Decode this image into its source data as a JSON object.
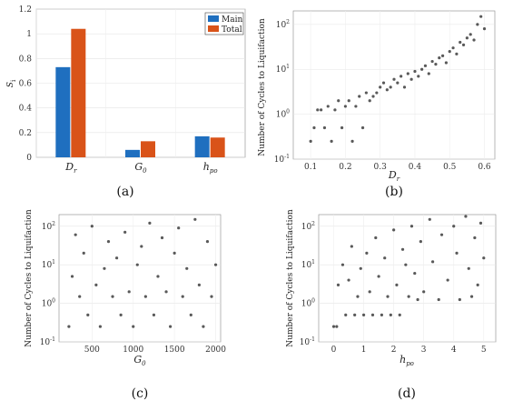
{
  "panel_labels": [
    "(a)",
    "(b)",
    "(c)",
    "(d)"
  ],
  "colors": {
    "main": "#1f6fbf",
    "total": "#d95319",
    "points": "#222222"
  },
  "chart_data": [
    {
      "type": "bar",
      "ylabel": "Si",
      "categories": [
        "Dr",
        "G0",
        "hpo"
      ],
      "ylim": [
        0,
        1.2
      ],
      "yticks": [
        "0",
        "0.2",
        "0.4",
        "0.6",
        "0.8",
        "1",
        "1.2"
      ],
      "legend": "top-right",
      "series": [
        {
          "name": "Main",
          "values": [
            0.73,
            0.06,
            0.17
          ]
        },
        {
          "name": "Total",
          "values": [
            1.04,
            0.13,
            0.16
          ]
        }
      ],
      "grid": true
    },
    {
      "type": "scatter",
      "xlabel": "Dr",
      "ylabel": "Number of Cycles to Liquifaction",
      "xlim": [
        0.05,
        0.63
      ],
      "xticks": [
        "0.1",
        "0.2",
        "0.3",
        "0.4",
        "0.5",
        "0.6"
      ],
      "yscale": "log",
      "ylim": [
        0.1,
        200
      ],
      "yticks": [
        0.1,
        1,
        10,
        100
      ],
      "trend": "increasing",
      "points": [
        [
          0.1,
          0.25
        ],
        [
          0.11,
          0.5
        ],
        [
          0.12,
          1.25
        ],
        [
          0.13,
          1.25
        ],
        [
          0.14,
          0.5
        ],
        [
          0.15,
          1.5
        ],
        [
          0.16,
          0.25
        ],
        [
          0.17,
          1.25
        ],
        [
          0.18,
          2
        ],
        [
          0.19,
          0.5
        ],
        [
          0.2,
          1.5
        ],
        [
          0.21,
          2
        ],
        [
          0.22,
          0.25
        ],
        [
          0.23,
          1.5
        ],
        [
          0.24,
          2.5
        ],
        [
          0.25,
          0.5
        ],
        [
          0.26,
          3
        ],
        [
          0.27,
          2
        ],
        [
          0.28,
          2.5
        ],
        [
          0.29,
          3
        ],
        [
          0.3,
          4
        ],
        [
          0.31,
          5
        ],
        [
          0.32,
          3.5
        ],
        [
          0.33,
          4
        ],
        [
          0.34,
          6
        ],
        [
          0.35,
          5
        ],
        [
          0.36,
          7
        ],
        [
          0.37,
          4
        ],
        [
          0.38,
          8
        ],
        [
          0.39,
          6
        ],
        [
          0.4,
          9
        ],
        [
          0.41,
          7
        ],
        [
          0.42,
          10
        ],
        [
          0.43,
          12
        ],
        [
          0.44,
          8
        ],
        [
          0.45,
          15
        ],
        [
          0.46,
          13
        ],
        [
          0.47,
          18
        ],
        [
          0.48,
          20
        ],
        [
          0.49,
          14
        ],
        [
          0.5,
          25
        ],
        [
          0.51,
          30
        ],
        [
          0.52,
          22
        ],
        [
          0.53,
          40
        ],
        [
          0.54,
          35
        ],
        [
          0.55,
          50
        ],
        [
          0.56,
          60
        ],
        [
          0.57,
          45
        ],
        [
          0.58,
          100
        ],
        [
          0.59,
          150
        ],
        [
          0.6,
          80
        ]
      ]
    },
    {
      "type": "scatter",
      "xlabel": "G0",
      "ylabel": "Number of Cycles to Liquifaction",
      "xlim": [
        100,
        2060
      ],
      "xticks": [
        "500",
        "1000",
        "1500",
        "2000"
      ],
      "yscale": "log",
      "ylim": [
        0.1,
        200
      ],
      "yticks": [
        0.1,
        1,
        10,
        100
      ],
      "trend": "none",
      "points": [
        [
          220,
          0.25
        ],
        [
          260,
          5
        ],
        [
          300,
          60
        ],
        [
          350,
          1.5
        ],
        [
          400,
          20
        ],
        [
          450,
          0.5
        ],
        [
          500,
          100
        ],
        [
          550,
          3
        ],
        [
          600,
          0.25
        ],
        [
          650,
          8
        ],
        [
          700,
          40
        ],
        [
          750,
          1.5
        ],
        [
          800,
          15
        ],
        [
          850,
          0.5
        ],
        [
          900,
          70
        ],
        [
          950,
          2
        ],
        [
          1000,
          0.25
        ],
        [
          1050,
          10
        ],
        [
          1100,
          30
        ],
        [
          1150,
          1.5
        ],
        [
          1200,
          120
        ],
        [
          1250,
          0.5
        ],
        [
          1300,
          5
        ],
        [
          1350,
          50
        ],
        [
          1400,
          2
        ],
        [
          1450,
          0.25
        ],
        [
          1500,
          20
        ],
        [
          1550,
          90
        ],
        [
          1600,
          1.5
        ],
        [
          1650,
          8
        ],
        [
          1700,
          0.5
        ],
        [
          1750,
          150
        ],
        [
          1800,
          3
        ],
        [
          1850,
          0.25
        ],
        [
          1900,
          40
        ],
        [
          1950,
          1.5
        ],
        [
          2000,
          10
        ]
      ]
    },
    {
      "type": "scatter",
      "xlabel": "hpo",
      "ylabel": "Number of Cycles to Liquifaction",
      "xlim": [
        -0.5,
        5.4
      ],
      "xticks": [
        "0",
        "1",
        "2",
        "3",
        "4",
        "5"
      ],
      "yscale": "log",
      "ylim": [
        0.1,
        200
      ],
      "yticks": [
        0.1,
        1,
        10,
        100
      ],
      "trend": "weak-increasing",
      "points": [
        [
          0.0,
          0.25
        ],
        [
          0.1,
          0.25
        ],
        [
          0.15,
          3
        ],
        [
          0.3,
          10
        ],
        [
          0.4,
          0.5
        ],
        [
          0.5,
          4
        ],
        [
          0.6,
          30
        ],
        [
          0.7,
          0.5
        ],
        [
          0.8,
          1.5
        ],
        [
          0.9,
          8
        ],
        [
          1.0,
          0.5
        ],
        [
          1.1,
          20
        ],
        [
          1.2,
          2
        ],
        [
          1.3,
          0.5
        ],
        [
          1.4,
          50
        ],
        [
          1.5,
          5
        ],
        [
          1.6,
          0.5
        ],
        [
          1.7,
          15
        ],
        [
          1.8,
          1.5
        ],
        [
          1.9,
          0.5
        ],
        [
          2.0,
          80
        ],
        [
          2.1,
          3
        ],
        [
          2.2,
          0.5
        ],
        [
          2.3,
          25
        ],
        [
          2.4,
          10
        ],
        [
          2.5,
          1.5
        ],
        [
          2.6,
          100
        ],
        [
          2.7,
          6
        ],
        [
          2.8,
          1.25
        ],
        [
          2.9,
          40
        ],
        [
          3.0,
          2
        ],
        [
          3.2,
          150
        ],
        [
          3.3,
          12
        ],
        [
          3.5,
          1.25
        ],
        [
          3.6,
          60
        ],
        [
          3.8,
          4
        ],
        [
          4.0,
          100
        ],
        [
          4.1,
          20
        ],
        [
          4.2,
          1.25
        ],
        [
          4.4,
          180
        ],
        [
          4.5,
          8
        ],
        [
          4.6,
          1.5
        ],
        [
          4.7,
          50
        ],
        [
          4.8,
          3
        ],
        [
          4.9,
          120
        ],
        [
          5.0,
          15
        ]
      ]
    }
  ]
}
